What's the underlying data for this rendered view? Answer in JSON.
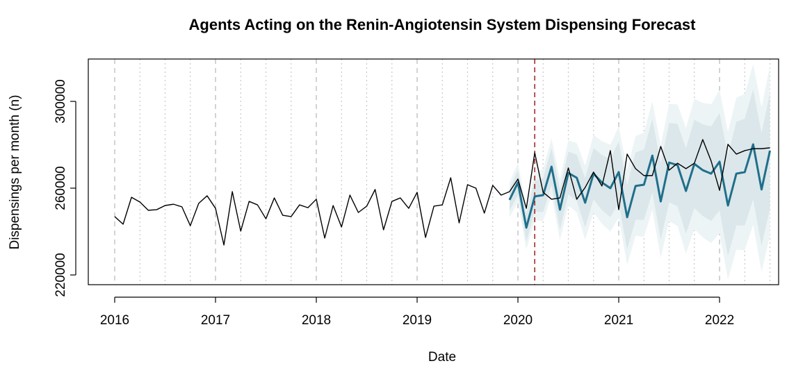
{
  "chart_data": {
    "type": "line",
    "title": "Agents Acting on the Renin-Angiotensin System Dispensing Forecast",
    "xlabel": "Date",
    "ylabel": "Dispensings per month (n)",
    "xlim": [
      2015.738,
      2022.586
    ],
    "ylim": [
      215520,
      319520
    ],
    "xticks": [
      2016,
      2017,
      2018,
      2019,
      2020,
      2021,
      2022
    ],
    "minor_xticks": [
      2016.25,
      2016.5,
      2016.75,
      2017.25,
      2017.5,
      2017.75,
      2018.25,
      2018.5,
      2018.75,
      2019.25,
      2019.5,
      2019.75,
      2020.25,
      2020.5,
      2020.75,
      2021.25,
      2021.5,
      2021.75,
      2022.25,
      2022.5
    ],
    "yticks": [
      220000,
      260000,
      300000
    ],
    "grid": true,
    "vline": {
      "x": 2020.1667,
      "color": "#a52a2a"
    },
    "series": [
      {
        "color": "#000000",
        "start": 2016,
        "frequency": 12,
        "values": [
          246900,
          243400,
          255800,
          253600,
          249800,
          250100,
          252000,
          252600,
          251400,
          242700,
          253000,
          256500,
          250700,
          233800,
          258400,
          240200,
          253900,
          252300,
          245900,
          255500,
          247500,
          246900,
          252300,
          251000,
          254900,
          237000,
          252000,
          242100,
          256800,
          248800,
          251700,
          259400,
          240800,
          253900,
          255500,
          250700,
          258100,
          237300,
          251700,
          252300,
          264800,
          244000,
          261600,
          260000,
          248500,
          261300,
          256800,
          258400,
          264200,
          250700,
          276300,
          258100,
          254900,
          255500,
          269300,
          254900,
          260300,
          267400,
          261000,
          277300,
          250100,
          275700,
          269000,
          265800,
          265800,
          279200,
          268300,
          271500,
          269000,
          271500,
          282400,
          272500,
          259000,
          280200,
          275700,
          277300,
          278200,
          278200,
          278600
        ]
      },
      {
        "color": "#1f6f8b",
        "start": 2019.9167,
        "frequency": 12,
        "band_colors": [
          "#dbe7ea",
          "#edf4f5"
        ],
        "values": [
          254600,
          262600,
          241800,
          256200,
          256800,
          269900,
          250100,
          267000,
          264800,
          253300,
          266700,
          262600,
          260000,
          267400,
          246600,
          261000,
          261600,
          275000,
          253900,
          271800,
          270600,
          258700,
          271200,
          268300,
          266700,
          272200,
          252000,
          266700,
          267400,
          280200,
          259400,
          277300
        ],
        "pi80": [
          5000,
          5700,
          6400,
          7100,
          7800,
          8500,
          9200,
          9900,
          10600,
          11300,
          11900,
          12700,
          13400,
          14100,
          14800,
          15500,
          16200,
          16900,
          17600,
          18300,
          19000,
          19700,
          20400,
          21100,
          21800,
          22500,
          23200,
          23900,
          24600,
          25300,
          26000,
          26700
        ],
        "pi95": [
          8000,
          9000,
          10000,
          11000,
          12000,
          13000,
          14000,
          15000,
          16000,
          17000,
          18000,
          19000,
          20000,
          21000,
          22000,
          23000,
          24000,
          25000,
          26000,
          27000,
          28000,
          29000,
          30000,
          31000,
          32000,
          33000,
          34000,
          35000,
          36000,
          37000,
          38000,
          39000
        ]
      }
    ]
  }
}
